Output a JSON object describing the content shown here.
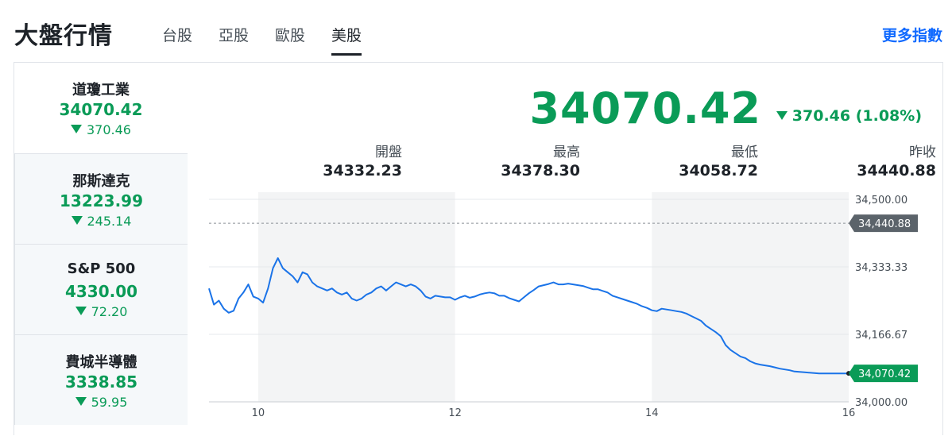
{
  "header": {
    "title": "大盤行情",
    "tabs": [
      "台股",
      "亞股",
      "歐股",
      "美股"
    ],
    "active_tab": "美股",
    "more_link": "更多指數"
  },
  "sidebar": {
    "items": [
      {
        "name": "道瓊工業",
        "price": "34070.42",
        "change": "370.46",
        "direction": "down",
        "active": true
      },
      {
        "name": "那斯達克",
        "price": "13223.99",
        "change": "245.14",
        "direction": "down",
        "active": false
      },
      {
        "name": "S&P 500",
        "price": "4330.00",
        "change": "72.20",
        "direction": "down",
        "active": false
      },
      {
        "name": "費城半導體",
        "price": "3338.85",
        "change": "59.95",
        "direction": "down",
        "active": false
      }
    ]
  },
  "quote": {
    "price": "34070.42",
    "change": "370.46 (1.08%)",
    "direction": "down",
    "stats": [
      {
        "label": "開盤",
        "value": "34332.23"
      },
      {
        "label": "最高",
        "value": "34378.30"
      },
      {
        "label": "最低",
        "value": "34058.72"
      },
      {
        "label": "昨收",
        "value": "34440.88"
      }
    ]
  },
  "colors": {
    "down": "#0a9b57",
    "line": "#1a73e8",
    "accent": "#0f69ff",
    "prev_close_tag": "#5b636a",
    "shade": "#f3f4f5"
  },
  "chart_data": {
    "type": "line",
    "y_ticks": [
      "34,500.00",
      "34,333.33",
      "34,166.67",
      "34,000.00"
    ],
    "x_ticks": [
      "10",
      "12",
      "14",
      "16"
    ],
    "ylim": [
      34000,
      34500
    ],
    "xlim": [
      9.5,
      16
    ],
    "grid": true,
    "prev_close": {
      "label": "34,440.88",
      "value": 34440.88
    },
    "last": {
      "label": "34,070.42",
      "value": 34070.42
    },
    "shaded_ranges": [
      [
        10,
        12
      ],
      [
        14,
        16
      ]
    ],
    "series": [
      {
        "x": [
          9.5,
          9.55,
          9.6,
          9.65,
          9.7,
          9.75,
          9.8,
          9.85,
          9.9,
          9.95,
          10.0,
          10.05,
          10.1,
          10.15,
          10.2,
          10.25,
          10.3,
          10.35,
          10.4,
          10.45,
          10.5,
          10.55,
          10.6,
          10.65,
          10.7,
          10.75,
          10.8,
          10.85,
          10.9,
          10.95,
          11.0,
          11.05,
          11.1,
          11.15,
          11.2,
          11.25,
          11.3,
          11.35,
          11.4,
          11.45,
          11.5,
          11.55,
          11.6,
          11.65,
          11.7,
          11.75,
          11.8,
          11.85,
          11.9,
          11.95,
          12.0,
          12.05,
          12.1,
          12.15,
          12.2,
          12.25,
          12.3,
          12.35,
          12.4,
          12.45,
          12.5,
          12.55,
          12.6,
          12.65,
          12.7,
          12.75,
          12.8,
          12.85,
          12.9,
          12.95,
          13.0,
          13.05,
          13.1,
          13.15,
          13.2,
          13.25,
          13.3,
          13.35,
          13.4,
          13.45,
          13.5,
          13.55,
          13.6,
          13.65,
          13.7,
          13.75,
          13.8,
          13.85,
          13.9,
          13.95,
          14.0,
          14.05,
          14.1,
          14.15,
          14.2,
          14.25,
          14.3,
          14.35,
          14.4,
          14.45,
          14.5,
          14.55,
          14.6,
          14.65,
          14.7,
          14.75,
          14.8,
          14.85,
          14.9,
          14.95,
          15.0,
          15.05,
          15.1,
          15.15,
          15.2,
          15.25,
          15.3,
          15.35,
          15.4,
          15.45,
          15.5,
          15.55,
          15.6,
          15.65,
          15.7,
          15.75,
          15.8,
          15.85,
          15.9,
          15.95,
          16.0
        ],
        "y": [
          34280,
          34240,
          34250,
          34230,
          34220,
          34225,
          34255,
          34270,
          34290,
          34260,
          34255,
          34245,
          34280,
          34330,
          34355,
          34330,
          34320,
          34310,
          34295,
          34320,
          34315,
          34295,
          34285,
          34280,
          34275,
          34280,
          34270,
          34265,
          34270,
          34255,
          34250,
          34255,
          34265,
          34270,
          34280,
          34285,
          34275,
          34285,
          34295,
          34290,
          34285,
          34290,
          34285,
          34275,
          34260,
          34255,
          34262,
          34260,
          34258,
          34258,
          34252,
          34258,
          34262,
          34257,
          34260,
          34265,
          34268,
          34270,
          34268,
          34262,
          34262,
          34256,
          34252,
          34248,
          34258,
          34268,
          34276,
          34285,
          34288,
          34291,
          34295,
          34290,
          34290,
          34292,
          34290,
          34288,
          34286,
          34282,
          34278,
          34278,
          34274,
          34270,
          34262,
          34258,
          34254,
          34250,
          34246,
          34242,
          34236,
          34232,
          34226,
          34224,
          34230,
          34228,
          34226,
          34224,
          34222,
          34218,
          34212,
          34206,
          34200,
          34188,
          34180,
          34172,
          34162,
          34140,
          34128,
          34120,
          34112,
          34108,
          34100,
          34095,
          34092,
          34090,
          34088,
          34085,
          34082,
          34080,
          34078,
          34075,
          34074,
          34073,
          34072,
          34071,
          34070,
          34070,
          34070,
          34070,
          34070,
          34070,
          34070
        ]
      }
    ]
  }
}
